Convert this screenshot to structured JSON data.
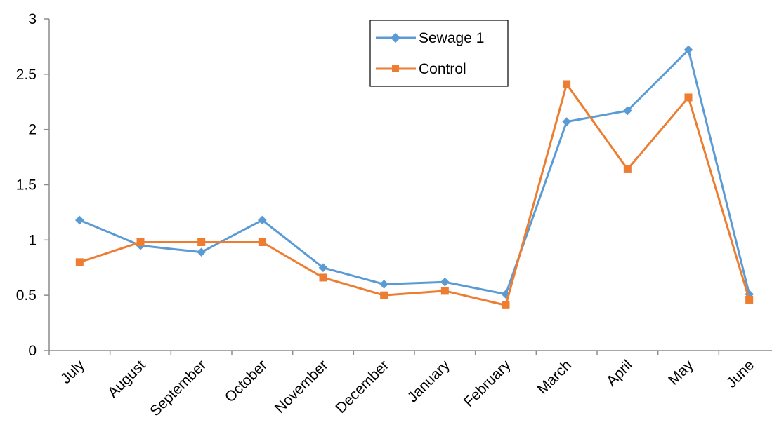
{
  "chart_data": {
    "type": "line",
    "categories": [
      "July",
      "August",
      "September",
      "October",
      "November",
      "December",
      "January",
      "February",
      "March",
      "April",
      "May",
      "June"
    ],
    "ylim": [
      0,
      3
    ],
    "yticks": [
      "0",
      "0.5",
      "1",
      "1.5",
      "2",
      "2.5",
      "3"
    ],
    "grid": false,
    "legend": "top-center",
    "series": [
      {
        "name": "Sewage 1",
        "color": "#5B9BD5",
        "marker": "diamond",
        "values": [
          1.18,
          0.95,
          0.89,
          1.18,
          0.75,
          0.6,
          0.62,
          0.51,
          2.07,
          2.17,
          2.72,
          0.51
        ]
      },
      {
        "name": "Control",
        "color": "#ED7D31",
        "marker": "square",
        "values": [
          0.8,
          0.98,
          0.98,
          0.98,
          0.66,
          0.5,
          0.54,
          0.41,
          2.41,
          1.64,
          2.29,
          0.46
        ]
      }
    ]
  }
}
